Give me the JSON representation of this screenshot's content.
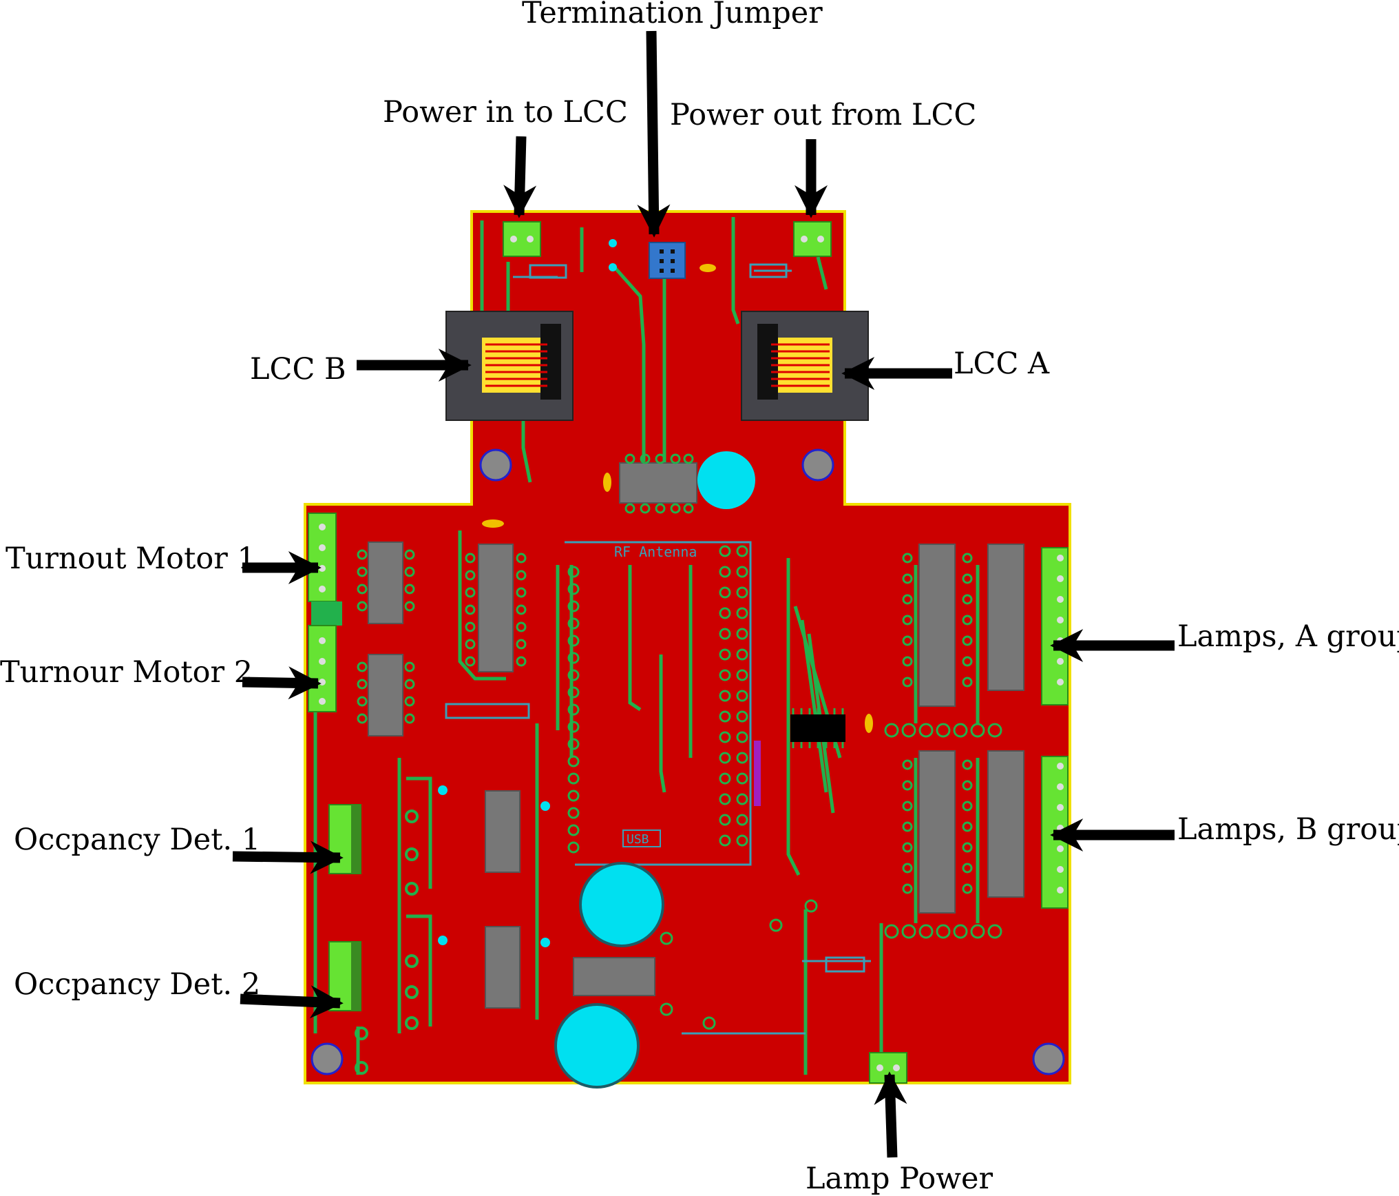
{
  "labels": {
    "termination_jumper": "Termination Jumper",
    "power_in": "Power in to LCC",
    "power_out": "Power out from LCC",
    "lcc_b": "LCC B",
    "lcc_a": "LCC A",
    "turnout_motor_1": "Turnout Motor 1",
    "turnout_motor_2": "Turnour Motor 2",
    "lamps_a": "Lamps, A group",
    "lamps_b": "Lamps, B group",
    "occupancy_1": "Occpancy Det. 1",
    "occupancy_2": "Occpancy Det. 2",
    "lamp_power": "Lamp Power"
  },
  "silkscreen": {
    "rf_antenna": "RF Antenna",
    "usb": "USB"
  },
  "colors": {
    "board": "#cc0000",
    "board_outline": "#f0e000",
    "trace": "#22b14c",
    "connector": "#66e333",
    "jumper": "#3377cc",
    "rj45_body": "#44444a",
    "ic_body": "#777777",
    "capacitor": "#00e0f0",
    "arrow": "#000000"
  }
}
